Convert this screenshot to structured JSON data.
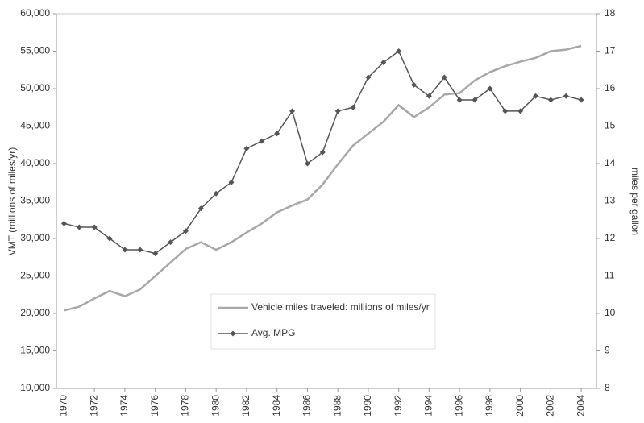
{
  "chart_data": {
    "type": "line",
    "x": [
      1970,
      1971,
      1972,
      1973,
      1974,
      1975,
      1976,
      1977,
      1978,
      1979,
      1980,
      1981,
      1982,
      1983,
      1984,
      1985,
      1986,
      1987,
      1988,
      1989,
      1990,
      1991,
      1992,
      1993,
      1994,
      1995,
      1996,
      1997,
      1998,
      1999,
      2000,
      2001,
      2002,
      2003,
      2004
    ],
    "xlim": [
      1969.5,
      2005
    ],
    "xticks": [
      1970,
      1972,
      1974,
      1976,
      1978,
      1980,
      1982,
      1984,
      1986,
      1988,
      1990,
      1992,
      1994,
      1996,
      1998,
      2000,
      2002,
      2004
    ],
    "ylabel": "VMT (millions of miles/yr)",
    "y2label": "miles per gallon",
    "ylim": [
      10000,
      60000
    ],
    "yticks": [
      {
        "value": 10000,
        "label": "10,000"
      },
      {
        "value": 15000,
        "label": "15,000"
      },
      {
        "value": 20000,
        "label": "20,000"
      },
      {
        "value": 25000,
        "label": "25,000"
      },
      {
        "value": 30000,
        "label": "30,000"
      },
      {
        "value": 35000,
        "label": "35,000"
      },
      {
        "value": 40000,
        "label": "40,000"
      },
      {
        "value": 45000,
        "label": "45,000"
      },
      {
        "value": 50000,
        "label": "50,000"
      },
      {
        "value": 55000,
        "label": "55,000"
      },
      {
        "value": 60000,
        "label": "60,000"
      }
    ],
    "y2lim": [
      8,
      18
    ],
    "y2ticks": [
      8,
      9,
      10,
      11,
      12,
      13,
      14,
      15,
      16,
      17,
      18
    ],
    "series": [
      {
        "name": "Vehicle miles traveled: millions of miles/yr",
        "color": "#a8a8a8",
        "values": [
          20400,
          20900,
          22000,
          23000,
          22300,
          23200,
          25000,
          26800,
          28600,
          29500,
          28500,
          29500,
          30800,
          32000,
          33500,
          34400,
          35200,
          37200,
          39900,
          42400,
          44000,
          45600,
          47800,
          46200,
          47500,
          49200,
          49400,
          51100,
          52200,
          53000,
          53600,
          54100,
          55000,
          55200,
          55700
        ]
      },
      {
        "name": "Avg. MPG",
        "color": "#555555",
        "axis": "y2",
        "marker": "diamond",
        "values": [
          12.4,
          12.3,
          12.3,
          12.0,
          11.7,
          11.7,
          11.6,
          11.9,
          12.2,
          12.8,
          13.2,
          13.5,
          14.4,
          14.6,
          14.8,
          15.4,
          14.0,
          14.3,
          15.4,
          15.5,
          16.3,
          16.7,
          17.0,
          16.1,
          15.8,
          16.3,
          15.7,
          15.7,
          16.0,
          15.4,
          15.4,
          15.8,
          15.7,
          15.8,
          15.7
        ]
      }
    ]
  }
}
